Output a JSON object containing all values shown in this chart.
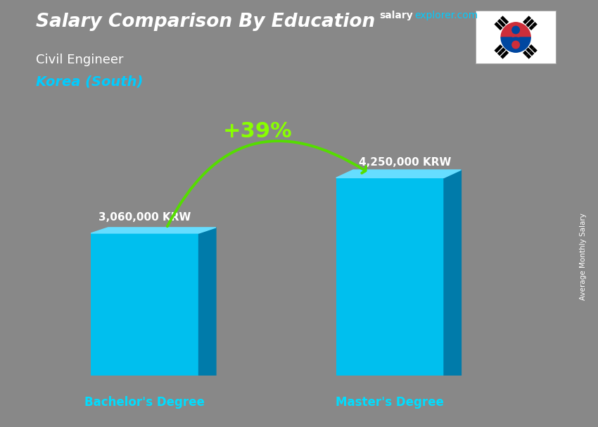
{
  "title_main": "Salary Comparison By Education",
  "title_sub1": "Civil Engineer",
  "title_sub2": "Korea (South)",
  "site_salary": "salary",
  "site_explorer": "explorer.com",
  "categories": [
    "Bachelor's Degree",
    "Master's Degree"
  ],
  "values": [
    3060000,
    4250000
  ],
  "value_labels": [
    "3,060,000 KRW",
    "4,250,000 KRW"
  ],
  "pct_label": "+39%",
  "bar_color_front": "#00BFEE",
  "bar_color_top": "#66DDFF",
  "bar_color_side": "#007BAA",
  "pct_color": "#88FF00",
  "arrow_color": "#55DD00",
  "ylabel": "Average Monthly Salary",
  "bg_color": "#888888",
  "text_color_white": "#FFFFFF",
  "text_color_cyan": "#00CCFF",
  "cat_label_color": "#00DDFF",
  "ylim": [
    0,
    5500000
  ],
  "bar_bottom": 0,
  "figsize": [
    8.5,
    6.06
  ],
  "dpi": 100
}
